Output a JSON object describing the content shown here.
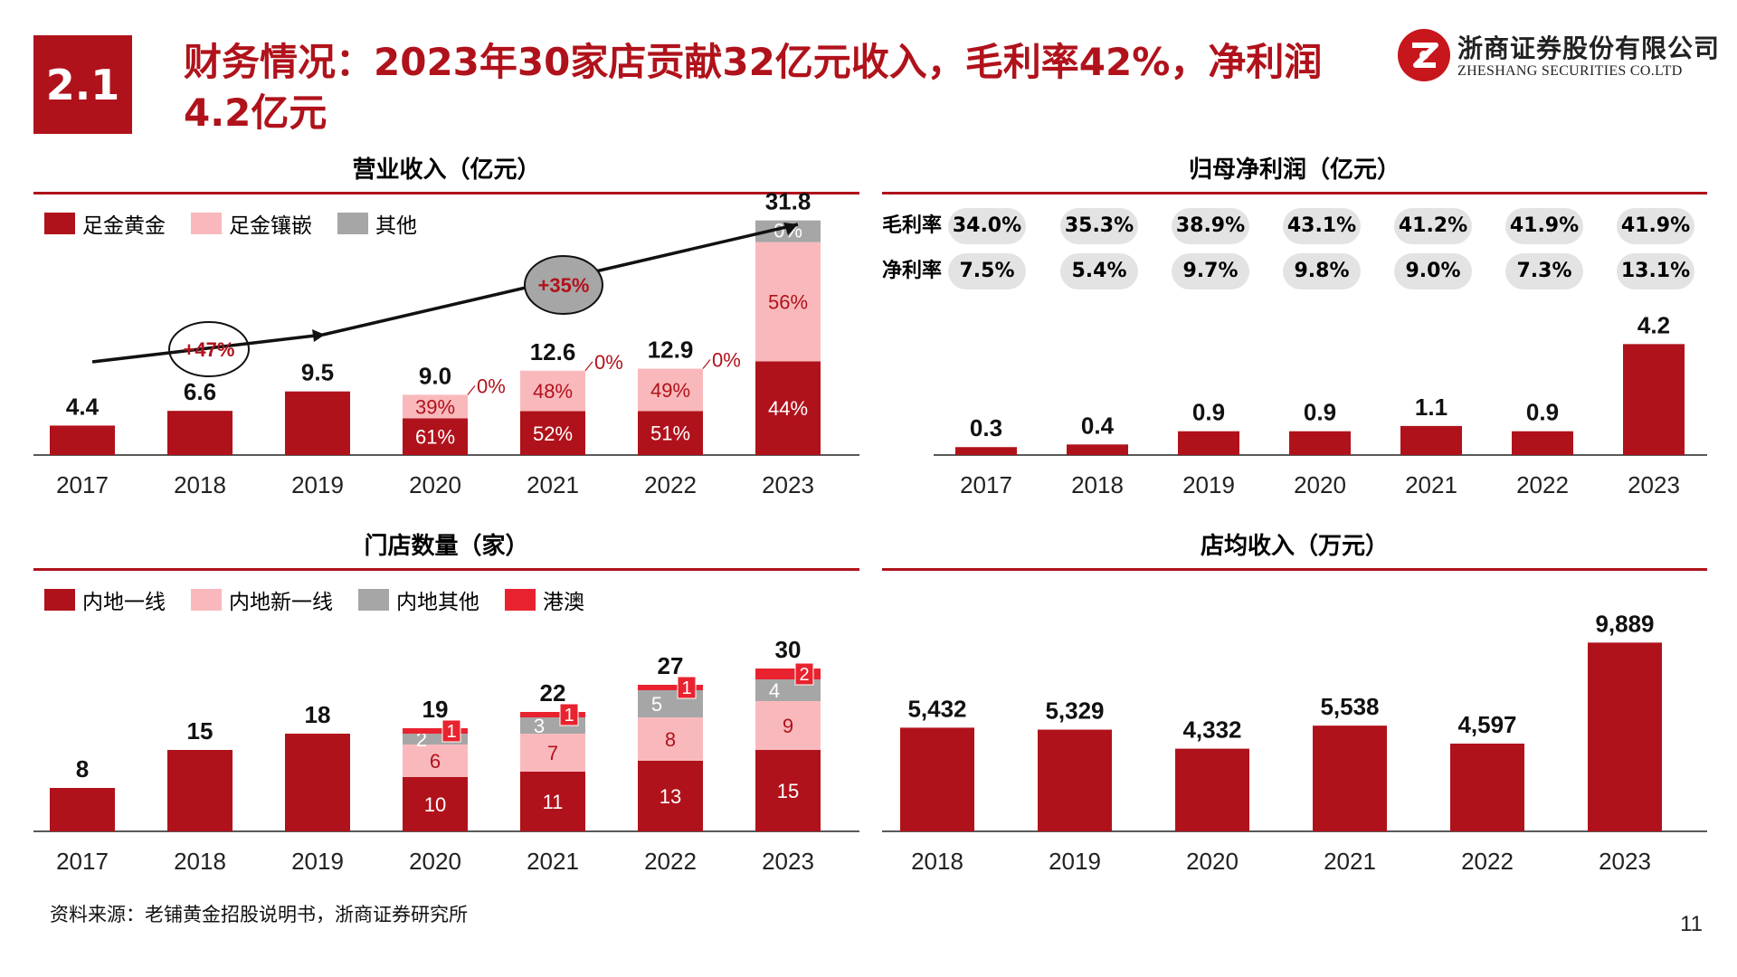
{
  "header": {
    "section": "2.1",
    "title": "财务情况：2023年30家店贡献32亿元收入，毛利率42%，净利润4.2亿元"
  },
  "logo": {
    "cn": "浙商证券股份有限公司",
    "en": "ZHESHANG SECURITIES CO.LTD"
  },
  "colors": {
    "dark_red": "#b0121b",
    "pink": "#f9b9bc",
    "gray": "#a6a6a6",
    "bright_red": "#e8232f",
    "pill": "#e3e3e3"
  },
  "chart_data": [
    {
      "id": "revenue",
      "type": "bar",
      "title": "营业收入（亿元）",
      "categories": [
        "2017",
        "2018",
        "2019",
        "2020",
        "2021",
        "2022",
        "2023"
      ],
      "totals": [
        4.4,
        6.6,
        9.5,
        9.0,
        12.6,
        12.9,
        31.8
      ],
      "total_labels": [
        "4.4",
        "6.6",
        "9.5",
        "9.0",
        "12.6",
        "12.9",
        "31.8"
      ],
      "series": [
        {
          "name": "足金黄金",
          "share": [
            1,
            1,
            1,
            0.61,
            0.52,
            0.51,
            0.44
          ],
          "labels": [
            "",
            "",
            "",
            "61%",
            "52%",
            "51%",
            "44%"
          ]
        },
        {
          "name": "足金镶嵌",
          "share": [
            0,
            0,
            0,
            0.39,
            0.48,
            0.49,
            0.56
          ],
          "labels": [
            "",
            "",
            "",
            "39%",
            "48%",
            "49%",
            "56%"
          ]
        },
        {
          "name": "其他",
          "share": [
            0,
            0,
            0,
            0.0,
            0.0,
            0.0,
            0.0
          ],
          "labels": [
            "",
            "",
            "",
            "0%",
            "0%",
            "0%",
            "0%"
          ]
        }
      ],
      "annotations": [
        "+47%",
        "+35%"
      ]
    },
    {
      "id": "profit",
      "type": "bar",
      "title": "归母净利润（亿元）",
      "categories": [
        "2017",
        "2018",
        "2019",
        "2020",
        "2021",
        "2022",
        "2023"
      ],
      "values": [
        0.3,
        0.4,
        0.9,
        0.9,
        1.1,
        0.9,
        4.2
      ],
      "value_labels": [
        "0.3",
        "0.4",
        "0.9",
        "0.9",
        "1.1",
        "0.9",
        "4.2"
      ],
      "gross_margin_label": "毛利率",
      "gross_margin": [
        "34.0%",
        "35.3%",
        "38.9%",
        "43.1%",
        "41.2%",
        "41.9%",
        "41.9%"
      ],
      "net_margin_label": "净利率",
      "net_margin": [
        "7.5%",
        "5.4%",
        "9.7%",
        "9.8%",
        "9.0%",
        "7.3%",
        "13.1%"
      ]
    },
    {
      "id": "stores",
      "type": "bar",
      "title": "门店数量（家）",
      "categories": [
        "2017",
        "2018",
        "2019",
        "2020",
        "2021",
        "2022",
        "2023"
      ],
      "totals": [
        8,
        15,
        18,
        19,
        22,
        27,
        30
      ],
      "total_labels": [
        "8",
        "15",
        "18",
        "19",
        "22",
        "27",
        "30"
      ],
      "series": [
        {
          "name": "内地一线",
          "values": [
            8,
            15,
            18,
            10,
            11,
            13,
            15
          ],
          "labels": [
            "",
            "",
            "",
            "10",
            "11",
            "13",
            "15"
          ]
        },
        {
          "name": "内地新一线",
          "values": [
            0,
            0,
            0,
            6,
            7,
            8,
            9
          ],
          "labels": [
            "",
            "",
            "",
            "6",
            "7",
            "8",
            "9"
          ]
        },
        {
          "name": "内地其他",
          "values": [
            0,
            0,
            0,
            2,
            3,
            5,
            4
          ],
          "labels": [
            "",
            "",
            "",
            "2",
            "3",
            "5",
            "4"
          ]
        },
        {
          "name": "港澳",
          "values": [
            0,
            0,
            0,
            1,
            1,
            1,
            2
          ],
          "labels": [
            "",
            "",
            "",
            "1",
            "1",
            "1",
            "2"
          ]
        }
      ]
    },
    {
      "id": "per_store",
      "type": "bar",
      "title": "店均收入（万元）",
      "categories": [
        "2018",
        "2019",
        "2020",
        "2021",
        "2022",
        "2023"
      ],
      "values": [
        5432,
        5329,
        4332,
        5538,
        4597,
        9889
      ],
      "value_labels": [
        "5,432",
        "5,329",
        "4,332",
        "5,538",
        "4,597",
        "9,889"
      ]
    }
  ],
  "footer": {
    "source": "资料来源：老铺黄金招股说明书，浙商证券研究所",
    "page": "11"
  }
}
